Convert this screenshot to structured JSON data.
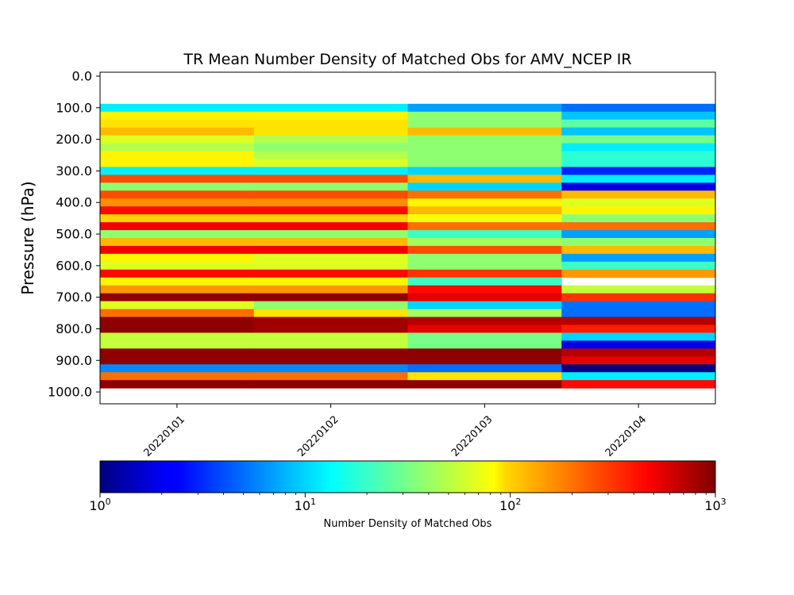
{
  "chart_data": {
    "type": "heatmap",
    "title": "TR Mean Number Density of Matched Obs for AMV_NCEP IR",
    "xlabel": "",
    "ylabel": "Pressure (hPa)",
    "x": [
      "20220101",
      "20220102",
      "20220103",
      "20220104"
    ],
    "ytick_labels": [
      "0.0",
      "100.0",
      "200.0",
      "300.0",
      "400.0",
      "500.0",
      "600.0",
      "700.0",
      "800.0",
      "900.0",
      "1000.0"
    ],
    "ylim": [
      1037.5,
      -12.5
    ],
    "y": [
      100,
      125,
      150,
      175,
      200,
      225,
      250,
      275,
      300,
      325,
      350,
      375,
      400,
      425,
      450,
      475,
      500,
      525,
      550,
      575,
      600,
      625,
      650,
      675,
      700,
      725,
      750,
      775,
      800,
      825,
      850,
      875,
      900,
      925,
      950,
      975
    ],
    "values": [
      [
        12,
        12,
        7,
        5
      ],
      [
        80,
        80,
        35,
        9
      ],
      [
        90,
        90,
        35,
        25
      ],
      [
        120,
        90,
        120,
        9
      ],
      [
        60,
        45,
        35,
        30
      ],
      [
        45,
        35,
        35,
        12
      ],
      [
        80,
        45,
        35,
        18
      ],
      [
        80,
        60,
        35,
        18
      ],
      [
        12,
        12,
        10,
        3
      ],
      [
        250,
        250,
        120,
        12
      ],
      [
        35,
        35,
        10,
        2
      ],
      [
        250,
        250,
        200,
        120
      ],
      [
        160,
        160,
        80,
        60
      ],
      [
        400,
        400,
        120,
        80
      ],
      [
        100,
        100,
        70,
        35
      ],
      [
        450,
        450,
        200,
        200
      ],
      [
        35,
        35,
        20,
        7
      ],
      [
        120,
        120,
        40,
        35
      ],
      [
        450,
        450,
        250,
        120
      ],
      [
        80,
        60,
        35,
        7
      ],
      [
        60,
        60,
        35,
        20
      ],
      [
        400,
        400,
        300,
        150
      ],
      [
        80,
        80,
        20,
        null
      ],
      [
        150,
        150,
        400,
        50
      ],
      [
        900,
        900,
        500,
        300
      ],
      [
        60,
        35,
        10,
        5
      ],
      [
        200,
        90,
        40,
        5
      ],
      [
        900,
        800,
        700,
        700
      ],
      [
        900,
        800,
        500,
        350
      ],
      [
        50,
        50,
        30,
        10
      ],
      [
        50,
        50,
        30,
        2
      ],
      [
        900,
        900,
        900,
        700
      ],
      [
        900,
        900,
        900,
        500
      ],
      [
        6,
        6,
        5,
        1
      ],
      [
        200,
        200,
        90,
        12
      ],
      [
        900,
        900,
        900,
        400
      ]
    ],
    "colorbar": {
      "label": "Number Density of Matched Obs",
      "scale": "log",
      "range": [
        1,
        1000
      ],
      "colormap": "jet",
      "tick_labels": [
        {
          "base": "10",
          "exp": "0"
        },
        {
          "base": "10",
          "exp": "1"
        },
        {
          "base": "10",
          "exp": "2"
        },
        {
          "base": "10",
          "exp": "3"
        }
      ]
    }
  }
}
